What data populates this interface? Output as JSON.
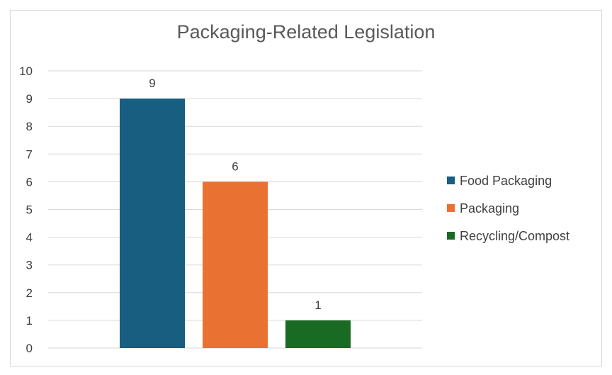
{
  "chart_data": {
    "type": "bar",
    "title": "Packaging-Related Legislation",
    "categories": [
      "Food Packaging",
      "Packaging",
      "Recycling/Compost"
    ],
    "values": [
      9,
      6,
      1
    ],
    "colors": [
      "#175e80",
      "#e97132",
      "#196b24"
    ],
    "ylim": [
      0,
      10
    ],
    "yticks": [
      0,
      1,
      2,
      3,
      4,
      5,
      6,
      7,
      8,
      9,
      10
    ],
    "grid": true,
    "legend": "right",
    "data_labels": [
      "9",
      "6",
      "1"
    ],
    "tick_labels": [
      "0",
      "1",
      "2",
      "3",
      "4",
      "5",
      "6",
      "7",
      "8",
      "9",
      "10"
    ]
  }
}
